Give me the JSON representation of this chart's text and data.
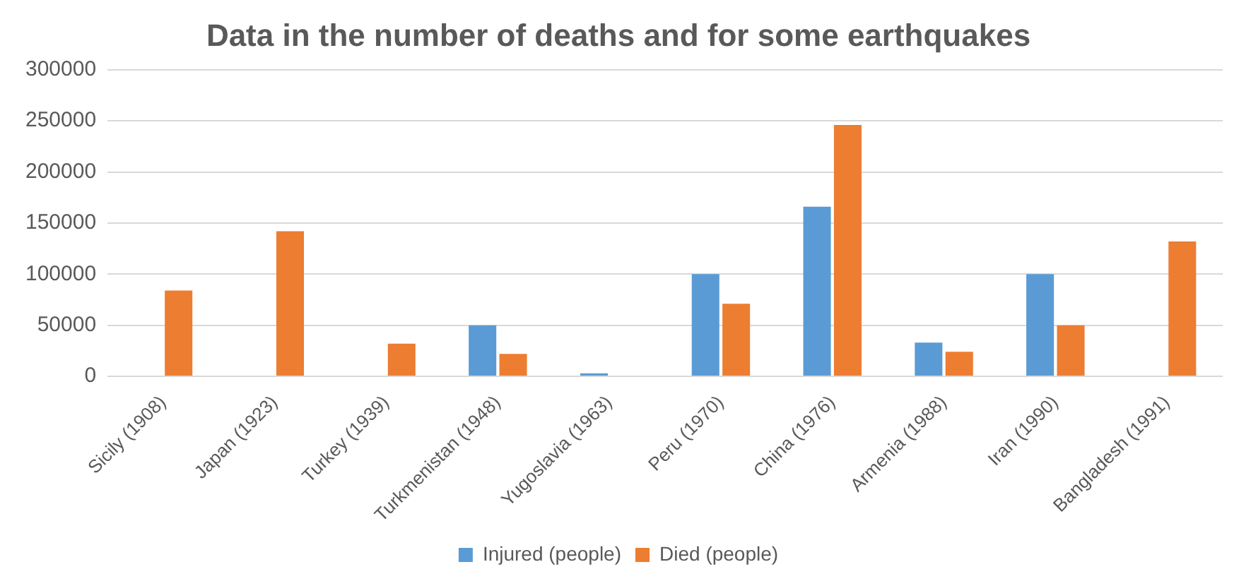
{
  "chart_data": {
    "type": "bar",
    "title": "Data in the number of deaths and for some earthquakes",
    "categories": [
      "Sicily (1908)",
      "Japan (1923)",
      "Turkey (1939)",
      "Turkmenistan (1948)",
      "Yugoslavia (1963)",
      "Peru (1970)",
      "China (1976)",
      "Armenia (1988)",
      "Iran (1990)",
      "Bangladesh (1991)"
    ],
    "series": [
      {
        "name": "Injured (people)",
        "color": "#5b9bd5",
        "values": [
          null,
          null,
          null,
          50000,
          3000,
          100000,
          166000,
          33000,
          100000,
          null
        ]
      },
      {
        "name": "Died (people)",
        "color": "#ed7d31",
        "values": [
          84000,
          142000,
          32000,
          22000,
          null,
          71000,
          246000,
          24000,
          50000,
          132000
        ]
      }
    ],
    "ylim": [
      0,
      300000
    ],
    "yticks": [
      0,
      50000,
      100000,
      150000,
      200000,
      250000,
      300000
    ],
    "grid": "y",
    "legend": "bottom"
  }
}
